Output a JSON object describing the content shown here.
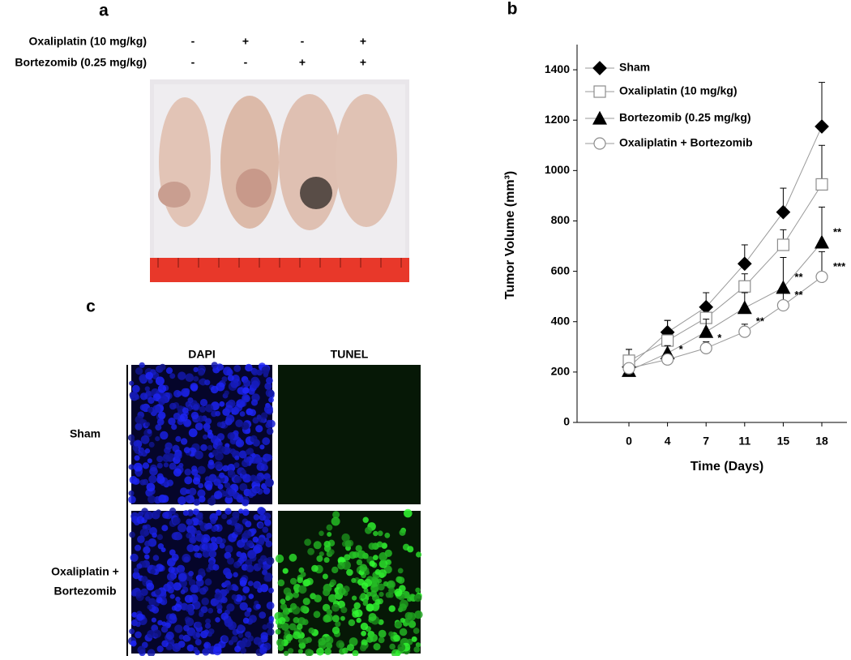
{
  "panel_a": {
    "label": "a",
    "rows": [
      {
        "name": "Oxaliplatin (10 mg/kg)",
        "marks": [
          "-",
          "+",
          "-",
          "+"
        ]
      },
      {
        "name": "Bortezomib (0.25 mg/kg)",
        "marks": [
          "-",
          "-",
          "+",
          "+"
        ]
      }
    ]
  },
  "chart_data": {
    "type": "line",
    "label": "b",
    "ylabel": "Tumor Volume (mm³)",
    "xlabel": "Time (Days)",
    "categories": [
      "0",
      "4",
      "7",
      "11",
      "15",
      "18"
    ],
    "ylim": [
      0,
      1500
    ],
    "yticks": [
      0,
      200,
      400,
      600,
      800,
      1000,
      1200,
      1400
    ],
    "legend": "top-left",
    "line_color": "#9a9a9a",
    "series": [
      {
        "name": "Sham",
        "marker": "diamond",
        "filled": true,
        "color": "#000000",
        "values": [
          220,
          358,
          458,
          630,
          835,
          1175
        ],
        "errors": [
          70,
          47,
          57,
          75,
          95,
          175
        ],
        "significance": [
          null,
          null,
          null,
          null,
          null,
          null
        ]
      },
      {
        "name": "Oxaliplatin (10 mg/kg)",
        "marker": "square",
        "filled": false,
        "color": "#8c8c8c",
        "values": [
          245,
          325,
          415,
          540,
          705,
          945
        ],
        "errors": [
          45,
          80,
          40,
          50,
          60,
          155
        ],
        "significance": [
          null,
          null,
          null,
          null,
          null,
          null
        ]
      },
      {
        "name": "Bortezomib (0.25 mg/kg)",
        "marker": "triangle",
        "filled": true,
        "color": "#000000",
        "values": [
          205,
          275,
          360,
          455,
          535,
          715
        ],
        "errors": [
          20,
          30,
          50,
          60,
          120,
          140
        ],
        "significance": [
          null,
          null,
          null,
          null,
          "**",
          "**"
        ]
      },
      {
        "name": "Oxaliplatin + Bortezomib",
        "marker": "circle",
        "filled": false,
        "color": "#8c8c8c",
        "values": [
          215,
          250,
          295,
          360,
          465,
          578
        ],
        "errors": [
          15,
          20,
          25,
          30,
          55,
          100
        ],
        "significance": [
          null,
          "*",
          "*",
          "**",
          "**",
          "***"
        ]
      }
    ]
  },
  "panel_c": {
    "label": "c",
    "columns": [
      "DAPI",
      "TUNEL"
    ],
    "rows": [
      [
        "Sham"
      ],
      [
        "Oxaliplatin +",
        "Bortezomib"
      ]
    ]
  }
}
